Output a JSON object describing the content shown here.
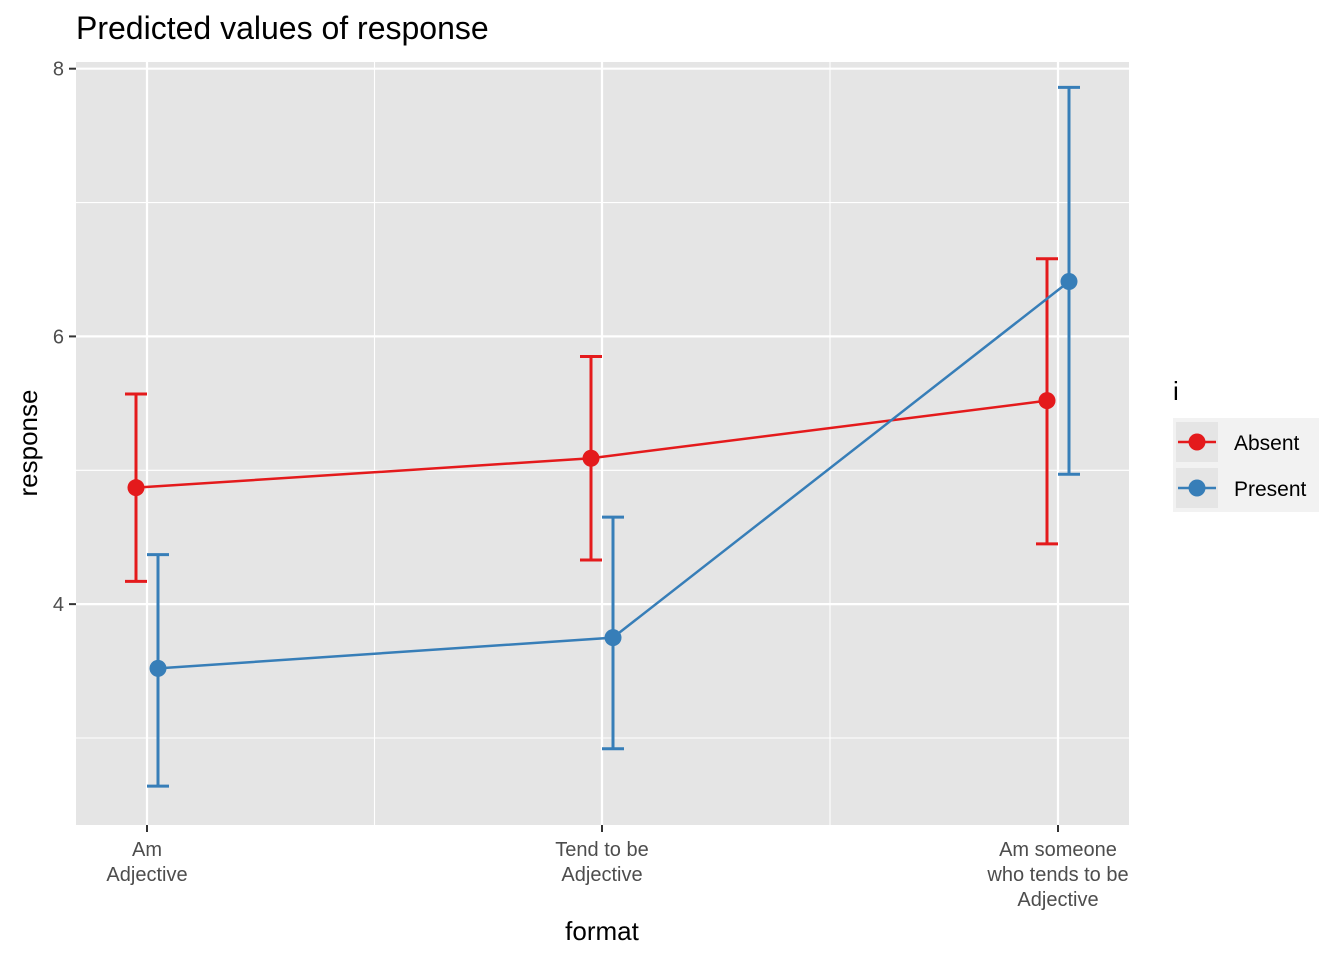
{
  "chart_data": {
    "type": "line",
    "title": "Predicted values of response",
    "xlabel": "format",
    "ylabel": "response",
    "categories": [
      [
        "Am",
        "Adjective"
      ],
      [
        "Tend to be",
        "Adjective"
      ],
      [
        "Am someone",
        "who tends to be",
        "Adjective"
      ]
    ],
    "y_ticks": [
      4,
      6,
      8
    ],
    "ylim": [
      2.35,
      8.05
    ],
    "grid": true,
    "legend": {
      "title": "i",
      "placement": "right"
    },
    "series": [
      {
        "name": "Absent",
        "color": "#E41A1C",
        "values": [
          4.87,
          5.09,
          5.52
        ],
        "lower": [
          4.17,
          4.33,
          4.45
        ],
        "upper": [
          5.57,
          5.85,
          6.58
        ]
      },
      {
        "name": "Present",
        "color": "#377EB8",
        "values": [
          3.52,
          3.75,
          6.41
        ],
        "lower": [
          2.64,
          2.92,
          4.97
        ],
        "upper": [
          4.37,
          4.65,
          7.86
        ]
      }
    ]
  }
}
